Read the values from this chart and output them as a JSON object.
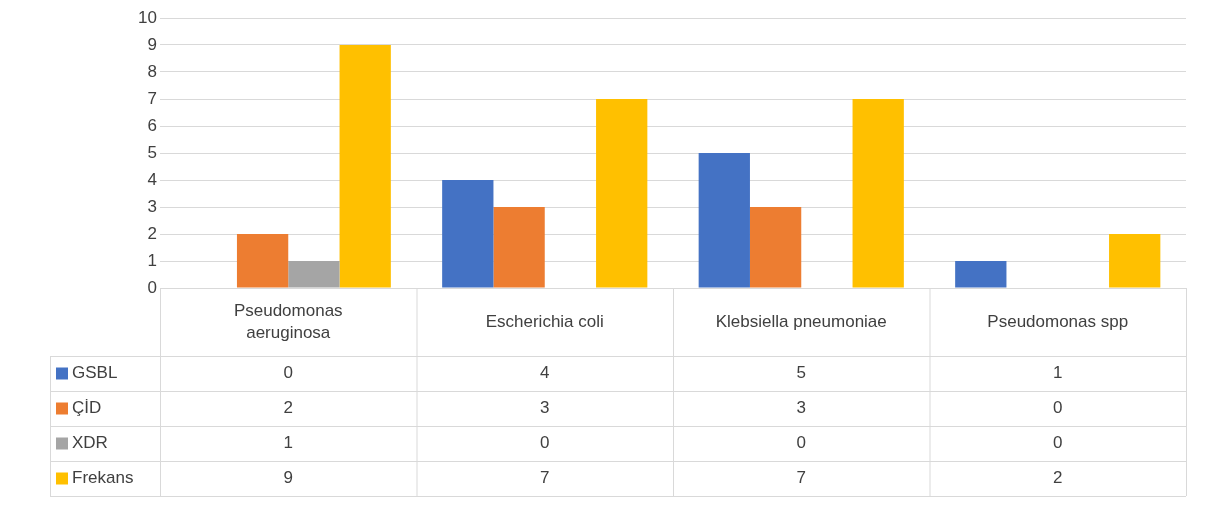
{
  "chart_data": {
    "type": "bar",
    "categories": [
      "Pseudomonas aeruginosa",
      "Escherichia coli",
      "Klebsiella pneumoniae",
      "Pseudomonas spp"
    ],
    "series": [
      {
        "name": "GSBL",
        "color": "#4472c4",
        "values": [
          0,
          4,
          5,
          1
        ]
      },
      {
        "name": "ÇİD",
        "color": "#ed7d31",
        "values": [
          2,
          3,
          3,
          0
        ]
      },
      {
        "name": "XDR",
        "color": "#a5a5a5",
        "values": [
          1,
          0,
          0,
          0
        ]
      },
      {
        "name": "Frekans",
        "color": "#ffc000",
        "values": [
          9,
          7,
          7,
          2
        ]
      }
    ],
    "ylim": [
      0,
      10
    ],
    "yticks": [
      0,
      1,
      2,
      3,
      4,
      5,
      6,
      7,
      8,
      9,
      10
    ],
    "grid": "y",
    "legend": "bottom",
    "data_labels": true
  }
}
